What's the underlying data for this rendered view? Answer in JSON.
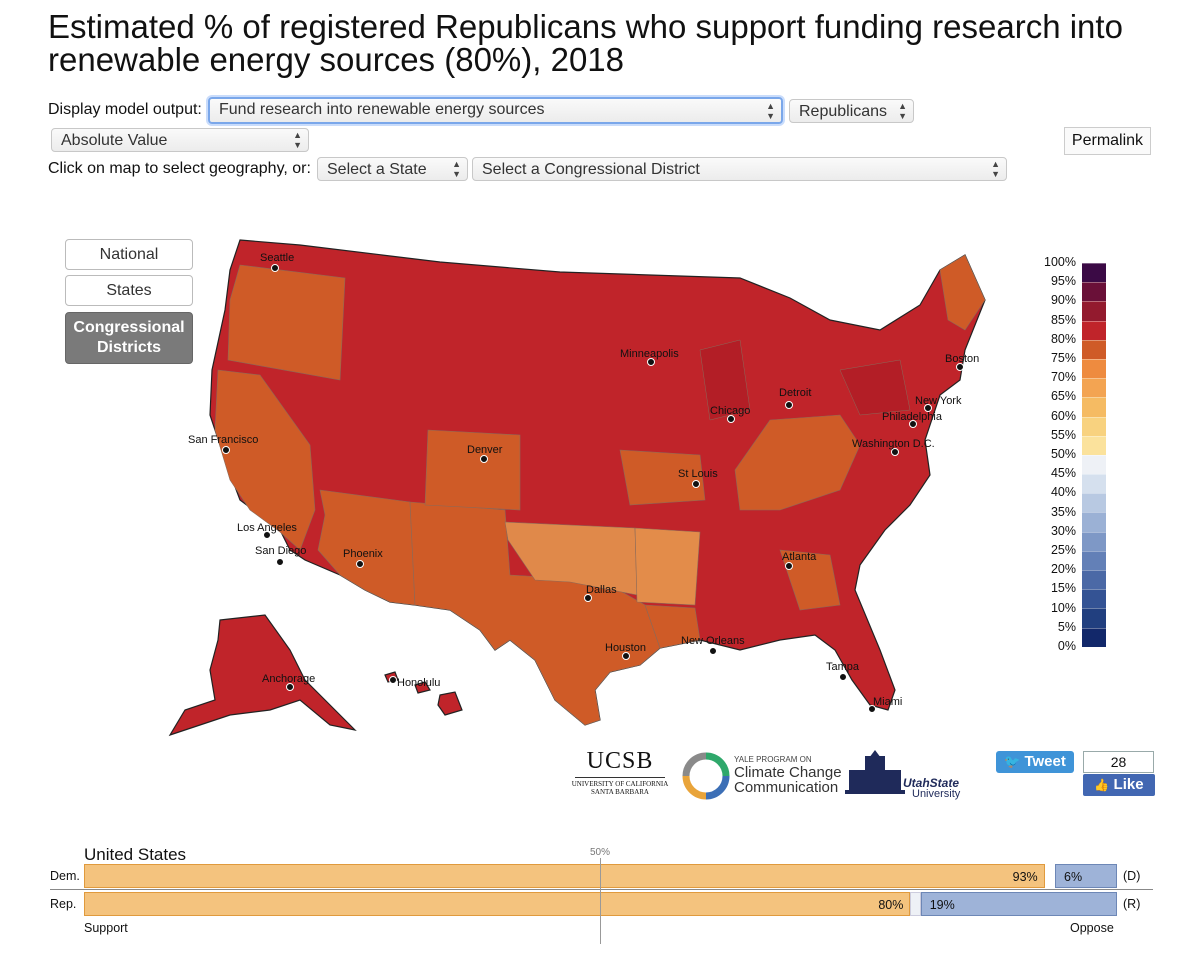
{
  "title": "Estimated % of registered Republicans who support funding research into renewable energy sources (80%), 2018",
  "controls": {
    "display_label": "Display model output:",
    "model_select": "Fund research into renewable energy sources",
    "party_select": "Republicans",
    "value_select": "Absolute Value",
    "permalink": "Permalink",
    "geo_label": "Click on map to select geography, or:",
    "state_select": "Select a State",
    "district_select": "Select a Congressional District"
  },
  "geo_buttons": [
    "National",
    "States",
    "Congressional Districts"
  ],
  "legend": {
    "ticks": [
      "100%",
      "95%",
      "90%",
      "85%",
      "80%",
      "75%",
      "70%",
      "65%",
      "60%",
      "55%",
      "50%",
      "45%",
      "40%",
      "35%",
      "30%",
      "25%",
      "20%",
      "15%",
      "10%",
      "5%",
      "0%"
    ],
    "colors": [
      "#3b0a45",
      "#6a1038",
      "#931a2e",
      "#c0242a",
      "#cf5b27",
      "#ee8b3f",
      "#f3a452",
      "#f5bb63",
      "#f8d27f",
      "#fbe29c",
      "#eef1f6",
      "#d5e0ee",
      "#b8c9e2",
      "#9bb1d5",
      "#7e98c6",
      "#6380b7",
      "#4b69a6",
      "#345394",
      "#213f7f",
      "#12286a"
    ]
  },
  "cities": [
    {
      "name": "Seattle"
    },
    {
      "name": "Minneapolis"
    },
    {
      "name": "Boston"
    },
    {
      "name": "Detroit"
    },
    {
      "name": "Chicago"
    },
    {
      "name": "New York"
    },
    {
      "name": "Philadelphia"
    },
    {
      "name": "San Francisco"
    },
    {
      "name": "Denver"
    },
    {
      "name": "Washington D.C."
    },
    {
      "name": "St Louis"
    },
    {
      "name": "Los Angeles"
    },
    {
      "name": "San Diego"
    },
    {
      "name": "Phoenix"
    },
    {
      "name": "Atlanta"
    },
    {
      "name": "Dallas"
    },
    {
      "name": "Houston"
    },
    {
      "name": "New Orleans"
    },
    {
      "name": "Tampa"
    },
    {
      "name": "Anchorage"
    },
    {
      "name": "Honolulu"
    },
    {
      "name": "Miami"
    }
  ],
  "logos": {
    "ucsb": "UCSB",
    "ucsb_sub1": "UNIVERSITY OF CALIFORNIA",
    "ucsb_sub2": "SANTA BARBARA",
    "yale_small": "YALE PROGRAM ON",
    "yale_main1": "Climate Change",
    "yale_main2": "Communication",
    "usu1": "UtahState",
    "usu2": "University"
  },
  "social": {
    "tweet": "Tweet",
    "like_count": "28",
    "like": "Like"
  },
  "summary": {
    "region": "United States",
    "midline": "50%",
    "rows": [
      {
        "label": "Dem.",
        "support": "93%",
        "oppose": "6%",
        "party": "(D)",
        "support_value": 93,
        "oppose_value": 6
      },
      {
        "label": "Rep.",
        "support": "80%",
        "oppose": "19%",
        "party": "(R)",
        "support_value": 80,
        "oppose_value": 19
      }
    ],
    "support_label": "Support",
    "oppose_label": "Oppose"
  }
}
